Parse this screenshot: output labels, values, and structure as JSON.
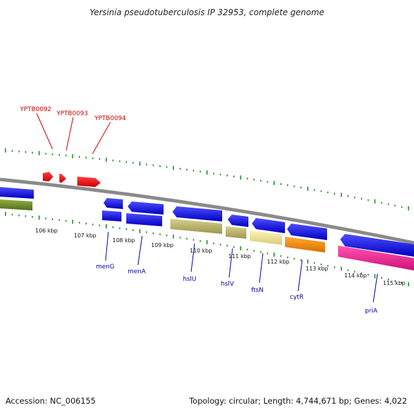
{
  "title": "Yersinia pseudotuberculosis IP 32953, complete genome",
  "footer": {
    "accession": "Accession: NC_006155",
    "summary": "Topology: circular; Length: 4,744,671 bp; Genes: 4,022"
  },
  "scale": {
    "ticks": [
      {
        "label": "106 kbp",
        "kb": 106
      },
      {
        "label": "107 kbp",
        "kb": 107
      },
      {
        "label": "108 kbp",
        "kb": 108
      },
      {
        "label": "109 kbp",
        "kb": 109
      },
      {
        "label": "110 kbp",
        "kb": 110
      },
      {
        "label": "111 kbp",
        "kb": 111
      },
      {
        "label": "112 kbp",
        "kb": 112
      },
      {
        "label": "113 kbp",
        "kb": 113
      },
      {
        "label": "114 kbp",
        "kb": 114
      },
      {
        "label": "115 kbp",
        "kb": 115
      }
    ]
  },
  "genes": {
    "reverse_labeled": [
      {
        "label": "YPTB0092",
        "color": "#cc0000"
      },
      {
        "label": "YPTB0093",
        "color": "#cc0000"
      },
      {
        "label": "YPTB0094",
        "color": "#cc0000"
      }
    ],
    "forward_labeled": [
      {
        "label": "menG",
        "color": "#000099"
      },
      {
        "label": "menA",
        "color": "#000099"
      },
      {
        "label": "hslU",
        "color": "#000099"
      },
      {
        "label": "hslV",
        "color": "#000099"
      },
      {
        "label": "ftsN",
        "color": "#000099"
      },
      {
        "label": "cytR",
        "color": "#000099"
      },
      {
        "label": "priA",
        "color": "#000099"
      }
    ]
  },
  "colors": {
    "backbone": "#888888",
    "cds_blue": "#0000ee",
    "cds_red": "#ee0000",
    "olive": "#6b8e23",
    "khaki": "#bdb76b",
    "pale_yellow": "#f0e68c",
    "orange": "#ff8c00",
    "pink": "#ff1493",
    "tick_green": "#228b22"
  }
}
